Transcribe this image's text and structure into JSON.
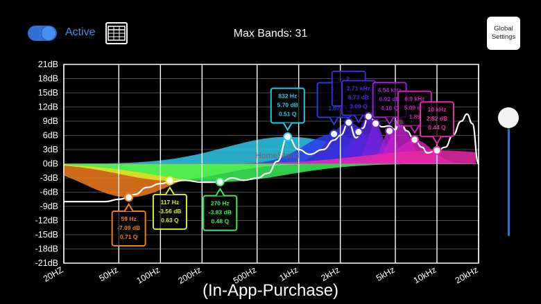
{
  "header": {
    "active_label": "Active",
    "active_on": true,
    "max_bands_label": "Max Bands: 31",
    "global_settings_line1": "Global",
    "global_settings_line2": "Settings"
  },
  "colors": {
    "accent": "#2f6fd6",
    "grid": "#ffffff",
    "background": "#000000"
  },
  "icons": {
    "table": "table-grid-icon"
  },
  "volume_slider": {
    "level": 0.06
  },
  "caption": "(In-App-Purchase)",
  "chart_data": {
    "type": "line",
    "xscale": "log",
    "xlim": [
      20,
      20000
    ],
    "ylim": [
      -21,
      21
    ],
    "y_ticks": [
      "21dB",
      "18dB",
      "15dB",
      "12dB",
      "9dB",
      "6dB",
      "3dB",
      "0dB",
      "-3dB",
      "-6dB",
      "-9dB",
      "-12dB",
      "-15dB",
      "-18dB",
      "-21dB"
    ],
    "x_ticks": [
      "20HZ",
      "50Hz",
      "100Hz",
      "200Hz",
      "500Hz",
      "1kHz",
      "2kHz",
      "5kHz",
      "10kHz",
      "20kHz"
    ],
    "x_tick_values": [
      20,
      50,
      100,
      200,
      500,
      1000,
      2000,
      5000,
      10000,
      20000
    ],
    "response_curve": [
      [
        20,
        -8
      ],
      [
        40,
        -8
      ],
      [
        50,
        -7.5
      ],
      [
        65,
        -6.5
      ],
      [
        80,
        -5
      ],
      [
        100,
        -4.2
      ],
      [
        120,
        -3.8
      ],
      [
        150,
        -3.5
      ],
      [
        200,
        -3.9
      ],
      [
        270,
        -3.9
      ],
      [
        330,
        -3
      ],
      [
        400,
        -3.5
      ],
      [
        500,
        -3
      ],
      [
        600,
        -2
      ],
      [
        700,
        0.5
      ],
      [
        832,
        5.7
      ],
      [
        1000,
        3
      ],
      [
        1200,
        2
      ],
      [
        1500,
        3
      ],
      [
        1800,
        5
      ],
      [
        2000,
        6
      ],
      [
        2300,
        8.7
      ],
      [
        2600,
        5.5
      ],
      [
        2900,
        7.5
      ],
      [
        3200,
        10
      ],
      [
        3600,
        9
      ],
      [
        4000,
        7.8
      ],
      [
        4500,
        8
      ],
      [
        5000,
        7.2
      ],
      [
        5400,
        9.7
      ],
      [
        6000,
        7
      ],
      [
        6900,
        5
      ],
      [
        7800,
        3.5
      ],
      [
        8500,
        2.3
      ],
      [
        10000,
        2.8
      ],
      [
        11500,
        3.5
      ],
      [
        13000,
        6
      ],
      [
        15000,
        9
      ],
      [
        16500,
        10.5
      ],
      [
        18000,
        8.5
      ],
      [
        20000,
        0
      ]
    ],
    "bands": [
      {
        "freq": 59,
        "gain": -7.09,
        "q": 0.71,
        "color": "#f07d1e",
        "label": [
          "59 Hz",
          "-7.09 dB",
          "0.71 Q"
        ]
      },
      {
        "freq": 117,
        "gain": -3.56,
        "q": 0.63,
        "color": "#d8f02a",
        "label": [
          "117 Hz",
          "-3.56 dB",
          "0.63 Q"
        ]
      },
      {
        "freq": 270,
        "gain": -3.83,
        "q": 0.48,
        "color": "#3af058",
        "label": [
          "270 Hz",
          "-3.83 dB",
          "0.48 Q"
        ]
      },
      {
        "freq": 832,
        "gain": 5.7,
        "q": 0.51,
        "color": "#30c8ea",
        "label": [
          "832 Hz",
          "5.70 dB",
          "0.51 Q"
        ]
      },
      {
        "freq": 1800,
        "gain": 6.3,
        "q": 1.07,
        "color": "#2a3ce6",
        "label": [
          "1.",
          "6.",
          "1.07"
        ]
      },
      {
        "freq": 2300,
        "gain": 8.7,
        "q": 1.6,
        "color": "#3a2ad8",
        "label": [
          "2.",
          "6.",
          "1."
        ]
      },
      {
        "freq": 2710,
        "gain": 6.73,
        "q": 3.09,
        "color": "#4a2ae0",
        "label": [
          "2.71 kHz",
          "6.73 dB",
          "3.09 Q"
        ]
      },
      {
        "freq": 3200,
        "gain": 10,
        "q": 3,
        "color": "#5a22d8",
        "label": [
          "",
          "",
          ""
        ]
      },
      {
        "freq": 3600,
        "gain": 8.5,
        "q": 4,
        "color": "#7422d8",
        "label": [
          "",
          "",
          ""
        ]
      },
      {
        "freq": 4540,
        "gain": 6.92,
        "q": 4.16,
        "color": "#a020d8",
        "label": [
          "4.54 kHz",
          "6.92 dB",
          "4.16 Q"
        ]
      },
      {
        "freq": 5400,
        "gain": 8.7,
        "q": 3,
        "color": "#c020c8",
        "label": [
          "",
          "",
          ""
        ]
      },
      {
        "freq": 6900,
        "gain": 5.09,
        "q": 1.89,
        "color": "#d020b8",
        "label": [
          "6.9 kHz",
          "5.09 dB",
          "1.89"
        ]
      },
      {
        "freq": 10000,
        "gain": 2.82,
        "q": 0.44,
        "color": "#e82aa8",
        "label": [
          "10 kHz",
          "2.82 dB",
          "0.44 Q"
        ]
      }
    ],
    "watermark": "HomeStand"
  }
}
